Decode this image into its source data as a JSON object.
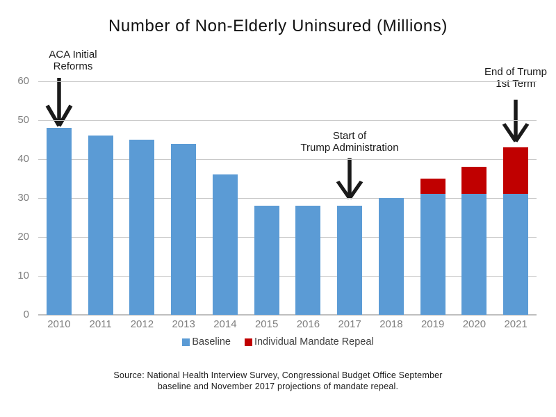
{
  "title": "Number of Non-Elderly Uninsured (Millions)",
  "chart_data": {
    "type": "bar",
    "stacked": true,
    "title": "Number of Non-Elderly Uninsured (Millions)",
    "categories": [
      "2010",
      "2011",
      "2012",
      "2013",
      "2014",
      "2015",
      "2016",
      "2017",
      "2018",
      "2019",
      "2020",
      "2021"
    ],
    "series": [
      {
        "name": "Baseline",
        "color": "#5B9BD5",
        "values": [
          48,
          46,
          45,
          44,
          36,
          28,
          28,
          28,
          30,
          31,
          31,
          31
        ]
      },
      {
        "name": "Individual Mandate Repeal",
        "color": "#C00000",
        "values": [
          0,
          0,
          0,
          0,
          0,
          0,
          0,
          0,
          0,
          4,
          7,
          12
        ]
      }
    ],
    "stacked_totals": [
      48,
      46,
      45,
      44,
      36,
      28,
      28,
      28,
      30,
      35,
      38,
      43
    ],
    "ylim": [
      0,
      60
    ],
    "yticks": [
      0,
      10,
      20,
      30,
      40,
      50,
      60
    ],
    "grid": true,
    "legend_position": "bottom",
    "annotations": [
      {
        "lines": [
          "ACA Initial",
          "Reforms"
        ],
        "target_category": "2010"
      },
      {
        "lines": [
          "Start of",
          "Trump Administration"
        ],
        "target_category": "2017"
      },
      {
        "lines": [
          "End of Trump",
          "1st Term"
        ],
        "target_category": "2021"
      }
    ]
  },
  "source": {
    "line1": "Source: National Health Interview Survey, Congressional Budget Office September",
    "line2": "baseline and November 2017 projections of mandate repeal."
  },
  "colors": {
    "baseline": "#5B9BD5",
    "repeal": "#C00000",
    "gridline": "#C9C9C9",
    "axis_line": "#BFBFBF",
    "tick_label": "#7F7F7F",
    "legend_text": "#404040",
    "annotation_text": "#1A1A1A"
  }
}
